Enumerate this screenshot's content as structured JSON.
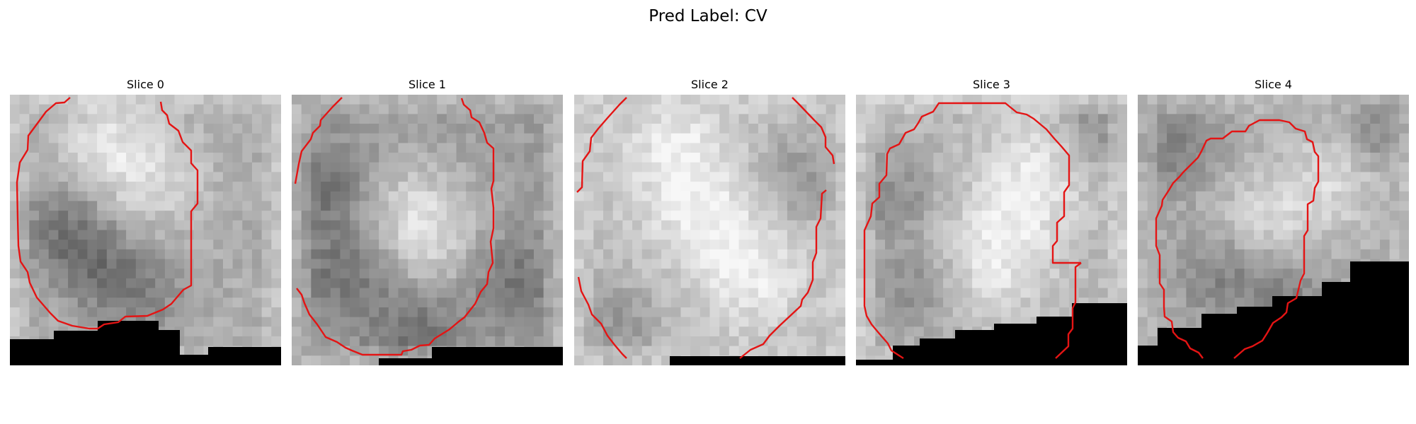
{
  "title": "Pred Label: CV",
  "colors": {
    "contour": "#e41414",
    "background": "#ffffff",
    "mask": "#000000"
  },
  "panels": [
    {
      "label": "Slice 0"
    },
    {
      "label": "Slice 1"
    },
    {
      "label": "Slice 2"
    },
    {
      "label": "Slice 3"
    },
    {
      "label": "Slice 4"
    }
  ]
}
